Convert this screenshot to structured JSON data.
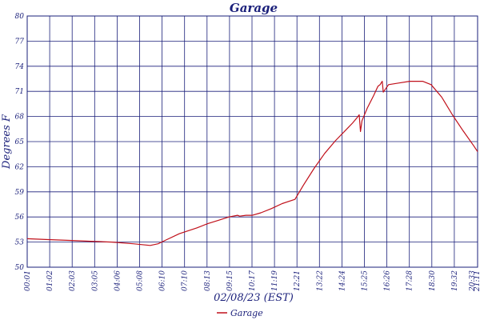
{
  "colors": {
    "axis": "#1a1f7a",
    "grid": "#1a1f7a",
    "series": "#c0101a",
    "text": "#1a1f7a",
    "background": "#ffffff"
  },
  "chart_data": {
    "type": "line",
    "title": "Garage",
    "xlabel": "02/08/23 (EST)",
    "ylabel": "Degrees F",
    "grid": true,
    "legend_position": "bottom-center",
    "y_tick_labels": [
      "50",
      "53",
      "56",
      "59",
      "62",
      "65",
      "68",
      "71",
      "74",
      "77",
      "80"
    ],
    "ylim": [
      50,
      80
    ],
    "x_tick_labels": [
      "00:01",
      "01:02",
      "02:03",
      "03:05",
      "04:06",
      "05:08",
      "06:10",
      "07:10",
      "08:13",
      "09:15",
      "10:17",
      "11:19",
      "12:21",
      "13:22",
      "14:24",
      "15:25",
      "16:26",
      "17:28",
      "18:30",
      "19:32",
      "20:33",
      "21:11"
    ],
    "xlim_hours": [
      0.0167,
      21.1833
    ],
    "series": [
      {
        "name": "Garage",
        "x": [
          0.0167,
          1.0,
          2.0,
          3.0,
          4.0,
          5.0,
          5.8,
          6.17,
          6.5,
          7.17,
          8.0,
          8.5,
          9.0,
          9.5,
          9.9,
          10.0,
          10.3,
          10.6,
          11.0,
          11.5,
          12.0,
          12.6,
          13.0,
          13.5,
          14.0,
          14.5,
          15.0,
          15.3,
          15.5,
          15.62,
          15.68,
          15.75,
          16.0,
          16.3,
          16.5,
          16.6,
          16.7,
          16.75,
          17.0,
          17.5,
          18.0,
          18.6,
          19.0,
          19.5,
          20.0,
          20.5,
          21.0,
          21.1833
        ],
        "values": [
          53.4,
          53.3,
          53.2,
          53.1,
          53.0,
          52.8,
          52.6,
          52.8,
          53.2,
          54.0,
          54.7,
          55.2,
          55.6,
          56.0,
          56.2,
          56.1,
          56.2,
          56.2,
          56.5,
          57.0,
          57.6,
          58.1,
          59.8,
          61.8,
          63.6,
          65.1,
          66.4,
          67.2,
          67.8,
          68.2,
          66.2,
          67.5,
          69.0,
          70.5,
          71.6,
          71.8,
          72.2,
          70.9,
          71.8,
          72.0,
          72.2,
          72.2,
          71.8,
          70.3,
          68.2,
          66.3,
          64.5,
          63.8
        ]
      }
    ]
  }
}
